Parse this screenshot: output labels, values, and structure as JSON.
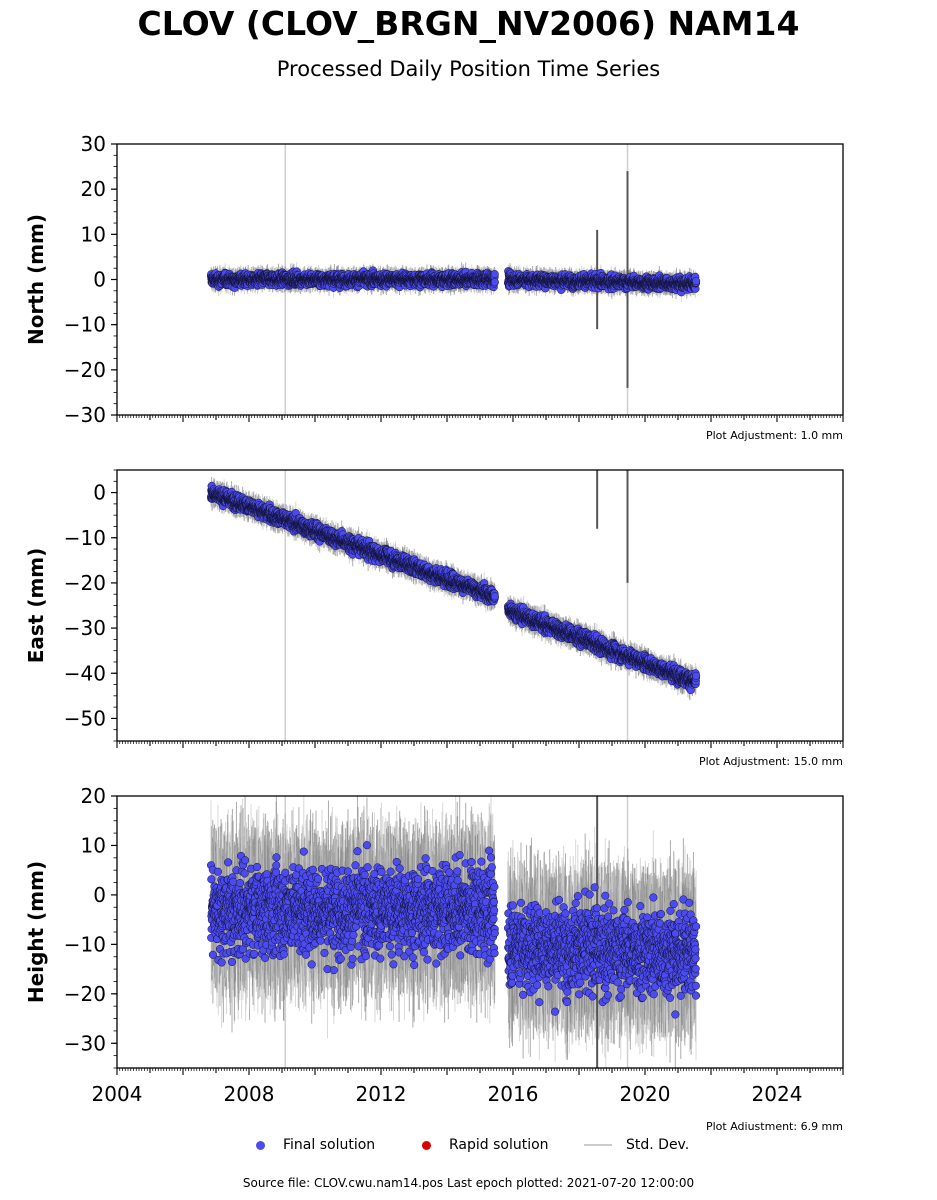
{
  "page": {
    "title": "CLOV (CLOV_BRGN_NV2006) NAM14",
    "subtitle": "Processed Daily Position Time Series",
    "footer": "Source file: CLOV.cwu.nam14.pos  Last epoch plotted: 2021-07-20 12:00:00"
  },
  "legend": {
    "final": "Final solution",
    "rapid": "Rapid solution",
    "std": "Std. Dev."
  },
  "colors": {
    "final": "#4b4bf0",
    "rapid": "#dd0000",
    "std": "#cccccc",
    "std_dark": "#555555",
    "vline": "#cfcfcf"
  },
  "chart_data": [
    {
      "type": "scatter",
      "ylabel": "North (mm)",
      "xlim": [
        2004,
        2026
      ],
      "ylim": [
        -30,
        30
      ],
      "yticks": [
        30,
        20,
        10,
        0,
        -10,
        -20,
        -30
      ],
      "xticks": [],
      "adjustment": "Plot Adjustment: 1.0 mm",
      "vlines": [
        2009.1,
        2019.47
      ],
      "series": [
        {
          "segments": [
            {
              "start": 2006.85,
              "end": 2015.45,
              "trend": [
                0,
                0
              ],
              "scatter": 1.0
            },
            {
              "start": 2015.85,
              "end": 2021.55,
              "trend": [
                0,
                -1
              ],
              "scatter": 1.0
            }
          ],
          "spikes": [
            {
              "x": 2018.55,
              "half": 11
            },
            {
              "x": 2019.47,
              "half": 24
            }
          ]
        }
      ]
    },
    {
      "type": "scatter",
      "ylabel": "East (mm)",
      "xlim": [
        2004,
        2026
      ],
      "ylim": [
        -55,
        5
      ],
      "yticks": [
        0,
        -10,
        -20,
        -30,
        -40,
        -50
      ],
      "xticks": [],
      "adjustment": "Plot Adjustment: 15.0 mm",
      "vlines": [
        2009.1,
        2019.47
      ],
      "series": [
        {
          "segments": [
            {
              "start": 2006.85,
              "end": 2015.45,
              "trend": [
                0,
                -23
              ],
              "scatter": 1.2
            },
            {
              "start": 2015.85,
              "end": 2021.55,
              "trend": [
                -26,
                -42
              ],
              "scatter": 1.2
            }
          ],
          "spikes": [
            {
              "x": 2018.55,
              "half": 8
            },
            {
              "x": 2019.47,
              "half": 20
            }
          ]
        }
      ]
    },
    {
      "type": "scatter",
      "ylabel": "Height (mm)",
      "xlim": [
        2004,
        2026
      ],
      "ylim": [
        -35,
        20
      ],
      "yticks": [
        20,
        10,
        0,
        -10,
        -20,
        -30
      ],
      "xticks": [
        2004,
        2008,
        2012,
        2016,
        2020,
        2024
      ],
      "adjustment": "Plot Adjustment: 6.9 mm",
      "vlines": [
        2009.1,
        2019.47
      ],
      "series": [
        {
          "segments": [
            {
              "start": 2006.85,
              "end": 2015.45,
              "trend": [
                -3,
                -3
              ],
              "scatter": 6.5
            },
            {
              "start": 2015.85,
              "end": 2021.55,
              "trend": [
                -10,
                -12
              ],
              "scatter": 6.5
            }
          ],
          "spikes": [
            {
              "x": 2018.55,
              "half": 40
            }
          ]
        }
      ]
    }
  ]
}
